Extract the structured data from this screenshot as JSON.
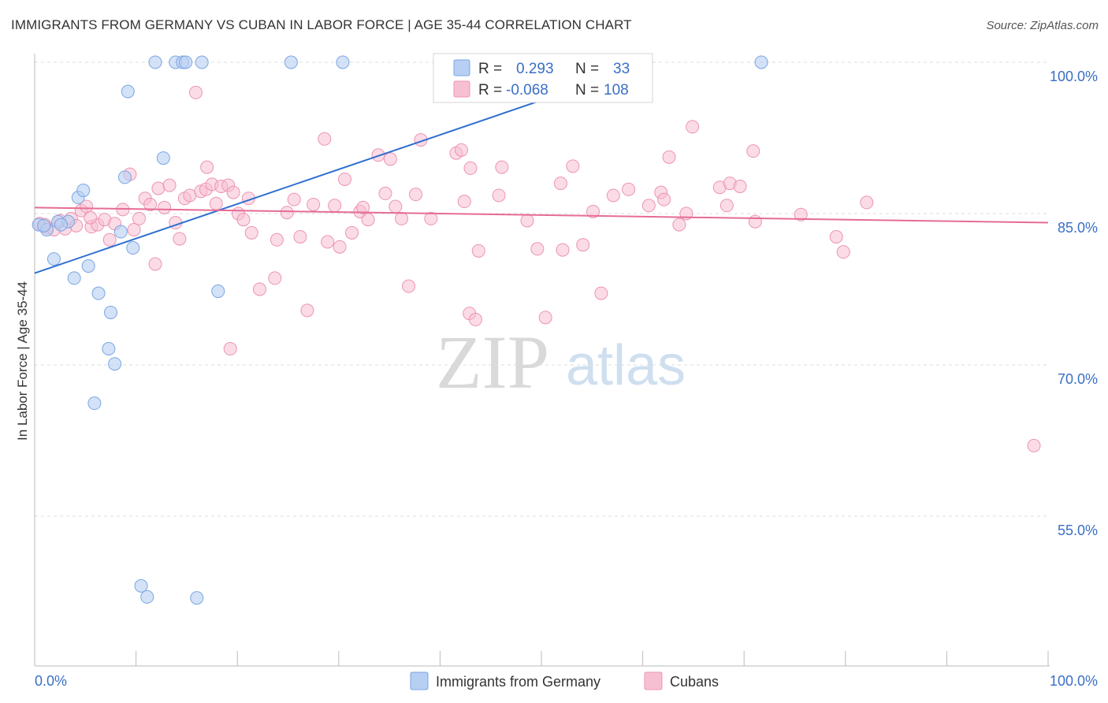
{
  "header": {
    "title": "IMMIGRANTS FROM GERMANY VS CUBAN IN LABOR FORCE | AGE 35-44 CORRELATION CHART",
    "source": "Source: ZipAtlas.com"
  },
  "watermark": {
    "zip": "ZIP",
    "atlas": "atlas"
  },
  "colors": {
    "germany_fill": "#b7cff2",
    "germany_stroke": "#7aa6e4",
    "germany_line": "#2f6fd1",
    "cuban_fill": "#f7c0d2",
    "cuban_stroke": "#ec94b2",
    "cuban_line": "#e56c96",
    "tick": "#3a6fc4"
  },
  "legend_box": {
    "r_label": "R =",
    "n_label": "N =",
    "germany": {
      "r": "0.293",
      "n": "33"
    },
    "cuban": {
      "r": "-0.068",
      "n": "108"
    }
  },
  "bottom_legend": {
    "germany": "Immigrants from Germany",
    "cuban": "Cubans"
  },
  "chart_data": {
    "type": "scatter",
    "title": "IMMIGRANTS FROM GERMANY VS CUBAN IN LABOR FORCE | AGE 35-44 CORRELATION CHART",
    "xlabel": "",
    "ylabel": "In Labor Force | Age 35-44",
    "xlim": [
      0,
      100
    ],
    "ylim": [
      40,
      101.5
    ],
    "x_tick_labels": [
      "0.0%",
      "100.0%"
    ],
    "y_ticks": [
      {
        "value": 100,
        "label": "100.0%"
      },
      {
        "value": 85,
        "label": "85.0%"
      },
      {
        "value": 70,
        "label": "70.0%"
      },
      {
        "value": 55,
        "label": "55.0%"
      }
    ],
    "series": [
      {
        "name": "Immigrants from Germany",
        "r": 0.293,
        "n": 33,
        "trend": {
          "x": [
            0,
            61
          ],
          "y": [
            79.1,
            100.0
          ]
        },
        "points": [
          [
            0.4,
            83.9
          ],
          [
            1.2,
            83.4
          ],
          [
            2.3,
            84.2
          ],
          [
            3.3,
            84.2
          ],
          [
            1.9,
            80.5
          ],
          [
            4.3,
            86.6
          ],
          [
            4.8,
            87.3
          ],
          [
            5.3,
            79.8
          ],
          [
            3.9,
            78.6
          ],
          [
            6.3,
            77.1
          ],
          [
            7.5,
            75.2
          ],
          [
            8.5,
            83.2
          ],
          [
            9.7,
            81.6
          ],
          [
            8.9,
            88.6
          ],
          [
            9.2,
            97.1
          ],
          [
            12.7,
            90.5
          ],
          [
            11.9,
            100.0
          ],
          [
            13.9,
            100.0
          ],
          [
            14.6,
            100.0
          ],
          [
            14.9,
            100.0
          ],
          [
            16.5,
            100.0
          ],
          [
            18.1,
            77.3
          ],
          [
            25.3,
            100.0
          ],
          [
            30.4,
            100.0
          ],
          [
            71.7,
            100.0
          ],
          [
            7.3,
            71.6
          ],
          [
            7.9,
            70.1
          ],
          [
            5.9,
            66.2
          ],
          [
            10.5,
            48.1
          ],
          [
            11.1,
            47.0
          ],
          [
            16.0,
            46.9
          ],
          [
            0.9,
            83.8
          ],
          [
            2.6,
            83.9
          ]
        ]
      },
      {
        "name": "Cubans",
        "r": -0.068,
        "n": 108,
        "trend": {
          "x": [
            0,
            100
          ],
          "y": [
            85.6,
            84.1
          ]
        },
        "points": [
          [
            0.5,
            84.0
          ],
          [
            1.2,
            83.6
          ],
          [
            1.9,
            83.4
          ],
          [
            2.5,
            84.3
          ],
          [
            3.0,
            83.5
          ],
          [
            3.6,
            84.5
          ],
          [
            4.1,
            83.8
          ],
          [
            4.6,
            85.3
          ],
          [
            5.1,
            85.7
          ],
          [
            5.6,
            83.7
          ],
          [
            6.2,
            83.9
          ],
          [
            6.9,
            84.4
          ],
          [
            7.4,
            82.4
          ],
          [
            7.9,
            84.0
          ],
          [
            8.7,
            85.4
          ],
          [
            9.4,
            88.9
          ],
          [
            9.8,
            83.4
          ],
          [
            10.3,
            84.5
          ],
          [
            10.9,
            86.5
          ],
          [
            11.4,
            85.9
          ],
          [
            11.9,
            80.0
          ],
          [
            12.2,
            87.5
          ],
          [
            12.8,
            85.6
          ],
          [
            13.3,
            87.8
          ],
          [
            13.9,
            84.1
          ],
          [
            14.3,
            82.5
          ],
          [
            14.8,
            86.5
          ],
          [
            15.3,
            86.8
          ],
          [
            15.9,
            97.0
          ],
          [
            16.4,
            87.2
          ],
          [
            16.9,
            87.4
          ],
          [
            17.5,
            87.9
          ],
          [
            17.9,
            86.0
          ],
          [
            18.4,
            87.7
          ],
          [
            19.1,
            87.8
          ],
          [
            19.6,
            87.1
          ],
          [
            20.1,
            85.0
          ],
          [
            20.6,
            84.4
          ],
          [
            21.1,
            86.5
          ],
          [
            21.4,
            83.1
          ],
          [
            22.2,
            77.5
          ],
          [
            23.7,
            78.6
          ],
          [
            23.9,
            82.4
          ],
          [
            24.9,
            85.1
          ],
          [
            25.6,
            86.4
          ],
          [
            26.2,
            82.7
          ],
          [
            26.9,
            75.4
          ],
          [
            27.5,
            85.9
          ],
          [
            28.6,
            92.4
          ],
          [
            28.9,
            82.2
          ],
          [
            29.6,
            85.8
          ],
          [
            30.1,
            81.7
          ],
          [
            30.6,
            88.4
          ],
          [
            31.3,
            83.1
          ],
          [
            32.1,
            85.2
          ],
          [
            32.4,
            85.6
          ],
          [
            32.9,
            84.4
          ],
          [
            33.9,
            90.8
          ],
          [
            34.6,
            87.0
          ],
          [
            35.1,
            90.4
          ],
          [
            35.6,
            85.7
          ],
          [
            36.2,
            84.5
          ],
          [
            36.9,
            77.8
          ],
          [
            37.6,
            86.9
          ],
          [
            38.1,
            92.3
          ],
          [
            39.1,
            84.5
          ],
          [
            41.6,
            91.0
          ],
          [
            42.1,
            91.3
          ],
          [
            42.4,
            86.2
          ],
          [
            43.0,
            89.5
          ],
          [
            42.9,
            75.1
          ],
          [
            43.5,
            74.5
          ],
          [
            43.8,
            81.3
          ],
          [
            46.1,
            89.6
          ],
          [
            45.8,
            86.8
          ],
          [
            48.6,
            84.3
          ],
          [
            49.6,
            81.5
          ],
          [
            50.4,
            74.7
          ],
          [
            51.9,
            88.0
          ],
          [
            52.1,
            81.4
          ],
          [
            53.1,
            89.7
          ],
          [
            54.1,
            81.9
          ],
          [
            55.1,
            85.2
          ],
          [
            55.9,
            77.1
          ],
          [
            57.1,
            86.8
          ],
          [
            58.6,
            87.4
          ],
          [
            60.6,
            85.8
          ],
          [
            61.8,
            87.1
          ],
          [
            62.1,
            86.4
          ],
          [
            62.6,
            90.6
          ],
          [
            63.6,
            83.9
          ],
          [
            64.3,
            85.0
          ],
          [
            64.9,
            93.6
          ],
          [
            67.6,
            87.6
          ],
          [
            68.3,
            85.8
          ],
          [
            68.6,
            88.0
          ],
          [
            69.6,
            87.7
          ],
          [
            70.9,
            91.2
          ],
          [
            71.1,
            84.2
          ],
          [
            75.6,
            84.9
          ],
          [
            79.1,
            82.7
          ],
          [
            79.8,
            81.2
          ],
          [
            82.1,
            86.1
          ],
          [
            98.6,
            62.0
          ],
          [
            19.3,
            71.6
          ],
          [
            1.0,
            83.9
          ],
          [
            17.0,
            89.6
          ],
          [
            5.5,
            84.6
          ]
        ]
      }
    ]
  }
}
